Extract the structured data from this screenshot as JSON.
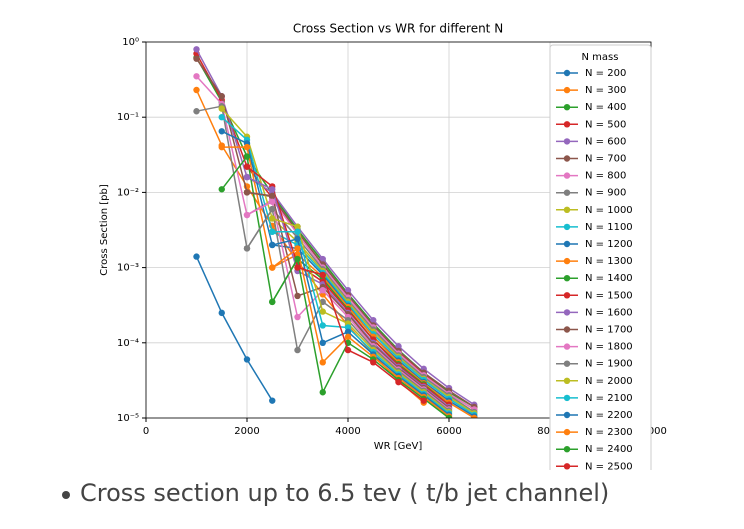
{
  "chart_data": {
    "type": "line",
    "title": "Cross Section vs WR for different N",
    "xlabel": "WR [GeV]",
    "ylabel": "Cross Section [pb]",
    "legend_title": "N mass",
    "legend": "upper right",
    "log_y": true,
    "grid": true,
    "x": [
      1000,
      1500,
      2000,
      2500,
      3000,
      3500,
      4000,
      4500,
      5000,
      5500,
      6000,
      6500
    ],
    "xlim": [
      0,
      10000
    ],
    "xticks": [
      0,
      2000,
      4000,
      6000,
      8000,
      10000
    ],
    "ylim": [
      1e-05,
      1
    ],
    "yticks": [
      {
        "value": 1e-05,
        "label": "10⁻⁵"
      },
      {
        "value": 0.0001,
        "label": "10⁻⁴"
      },
      {
        "value": 0.001,
        "label": "10⁻³"
      },
      {
        "value": 0.01,
        "label": "10⁻²"
      },
      {
        "value": 0.1,
        "label": "10⁻¹"
      },
      {
        "value": 1,
        "label": "10⁰"
      }
    ],
    "series": [
      {
        "name": "N = 200",
        "color": "#1f77b4",
        "values": [
          0.0014,
          0.00025,
          6e-05,
          1.7e-05,
          null,
          null,
          null,
          null,
          null,
          null,
          null,
          null
        ]
      },
      {
        "name": "N = 300",
        "color": "#ff7f0e",
        "values": [
          0.23,
          0.042,
          0.012,
          0.0036,
          0.0012,
          0.00044,
          0.00017,
          7e-05,
          3.1e-05,
          1.6e-05,
          null,
          null
        ]
      },
      {
        "name": "N = 400",
        "color": "#2ca02c",
        "values": [
          0.62,
          0.16,
          0.03,
          0.0095,
          0.0032,
          0.0012,
          0.00045,
          0.00018,
          8e-05,
          4e-05,
          2.2e-05,
          1.4e-05
        ]
      },
      {
        "name": "N = 500",
        "color": "#d62728",
        "values": [
          0.7,
          0.17,
          0.022,
          0.0085,
          0.003,
          0.0011,
          0.00042,
          0.00017,
          7.5e-05,
          3.8e-05,
          2.1e-05,
          1.3e-05
        ]
      },
      {
        "name": "N = 600",
        "color": "#9467bd",
        "values": [
          0.8,
          0.19,
          0.016,
          0.01,
          0.0035,
          0.0013,
          0.0005,
          0.0002,
          9e-05,
          4.5e-05,
          2.5e-05,
          1.5e-05
        ]
      },
      {
        "name": "N = 700",
        "color": "#8c564b",
        "values": [
          0.6,
          0.19,
          0.01,
          0.0088,
          0.003,
          0.0011,
          0.00043,
          0.00017,
          7.8e-05,
          4e-05,
          2.3e-05,
          1.4e-05
        ]
      },
      {
        "name": "N = 800",
        "color": "#e377c2",
        "values": [
          0.35,
          0.15,
          0.005,
          0.008,
          0.0028,
          0.001,
          0.0004,
          0.00016,
          7.2e-05,
          3.7e-05,
          2.1e-05,
          1.3e-05
        ]
      },
      {
        "name": "N = 900",
        "color": "#7f7f7f",
        "values": [
          0.12,
          0.14,
          0.0018,
          0.006,
          0.0025,
          0.00095,
          0.00037,
          0.00015,
          6.8e-05,
          3.5e-05,
          2e-05,
          1.2e-05
        ]
      },
      {
        "name": "N = 1000",
        "color": "#bcbd22",
        "values": [
          null,
          0.13,
          0.055,
          0.0045,
          0.0022,
          0.0009,
          0.00035,
          0.00014,
          6.5e-05,
          3.3e-05,
          1.9e-05,
          1.15e-05
        ]
      },
      {
        "name": "N = 1100",
        "color": "#17becf",
        "values": [
          null,
          0.1,
          0.05,
          0.003,
          0.002,
          0.00085,
          0.00033,
          0.00013,
          6.2e-05,
          3.2e-05,
          1.8e-05,
          1.1e-05
        ]
      },
      {
        "name": "N = 1200",
        "color": "#1f77b4",
        "values": [
          null,
          0.065,
          0.045,
          0.002,
          0.0018,
          0.0008,
          0.00031,
          0.00012,
          5.8e-05,
          3e-05,
          1.7e-05,
          1.05e-05
        ]
      },
      {
        "name": "N = 1300",
        "color": "#ff7f0e",
        "values": [
          null,
          0.04,
          0.04,
          0.001,
          0.0015,
          0.00075,
          0.0003,
          0.00012,
          5.5e-05,
          2.9e-05,
          1.6e-05,
          1e-05
        ]
      },
      {
        "name": "N = 1400",
        "color": "#2ca02c",
        "values": [
          null,
          0.011,
          0.03,
          0.00035,
          0.0013,
          0.0007,
          0.00028,
          0.00011,
          5.2e-05,
          2.8e-05,
          1.5e-05,
          null
        ]
      },
      {
        "name": "N = 1500",
        "color": "#d62728",
        "values": [
          null,
          null,
          0.022,
          0.012,
          0.0011,
          0.00065,
          0.00027,
          0.00011,
          5e-05,
          2.7e-05,
          1.5e-05,
          null
        ]
      },
      {
        "name": "N = 1600",
        "color": "#9467bd",
        "values": [
          null,
          null,
          0.016,
          0.011,
          0.0009,
          0.0006,
          0.00025,
          0.0001,
          4.8e-05,
          2.6e-05,
          1.4e-05,
          null
        ]
      },
      {
        "name": "N = 1700",
        "color": "#8c564b",
        "values": [
          null,
          null,
          0.01,
          0.009,
          0.00042,
          0.00055,
          0.00024,
          9.5e-05,
          4.6e-05,
          2.5e-05,
          1.35e-05,
          null
        ]
      },
      {
        "name": "N = 1800",
        "color": "#e377c2",
        "values": [
          null,
          null,
          0.005,
          0.0075,
          0.00022,
          0.0005,
          0.00022,
          9e-05,
          4.4e-05,
          2.4e-05,
          1.3e-05,
          null
        ]
      },
      {
        "name": "N = 1900",
        "color": "#7f7f7f",
        "values": [
          null,
          null,
          0.0018,
          0.006,
          8e-05,
          0.00035,
          0.0002,
          8.5e-05,
          4.2e-05,
          2.3e-05,
          1.25e-05,
          null
        ]
      },
      {
        "name": "N = 2000",
        "color": "#bcbd22",
        "values": [
          null,
          null,
          null,
          0.0045,
          0.0035,
          0.00026,
          0.00018,
          8e-05,
          4e-05,
          2.2e-05,
          1.2e-05,
          null
        ]
      },
      {
        "name": "N = 2100",
        "color": "#17becf",
        "values": [
          null,
          null,
          null,
          0.003,
          0.003,
          0.00017,
          0.00016,
          7.5e-05,
          3.8e-05,
          2.1e-05,
          1.15e-05,
          null
        ]
      },
      {
        "name": "N = 2200",
        "color": "#1f77b4",
        "values": [
          null,
          null,
          null,
          0.002,
          0.0024,
          0.0001,
          0.00014,
          7e-05,
          3.6e-05,
          2e-05,
          1.1e-05,
          null
        ]
      },
      {
        "name": "N = 2300",
        "color": "#ff7f0e",
        "values": [
          null,
          null,
          null,
          0.001,
          0.0018,
          5.5e-05,
          0.00012,
          6.5e-05,
          3.4e-05,
          1.9e-05,
          1.05e-05,
          null
        ]
      },
      {
        "name": "N = 2400",
        "color": "#2ca02c",
        "values": [
          null,
          null,
          null,
          0.00035,
          0.0013,
          2.2e-05,
          0.0001,
          6e-05,
          3.2e-05,
          1.8e-05,
          1e-05,
          null
        ]
      },
      {
        "name": "N = 2500",
        "color": "#d62728",
        "values": [
          null,
          null,
          null,
          null,
          0.001,
          0.0008,
          8e-05,
          5.5e-05,
          3e-05,
          1.7e-05,
          null,
          null
        ]
      }
    ]
  },
  "bullet": "Cross section up to 6.5 tev (  t/b jet channel)"
}
